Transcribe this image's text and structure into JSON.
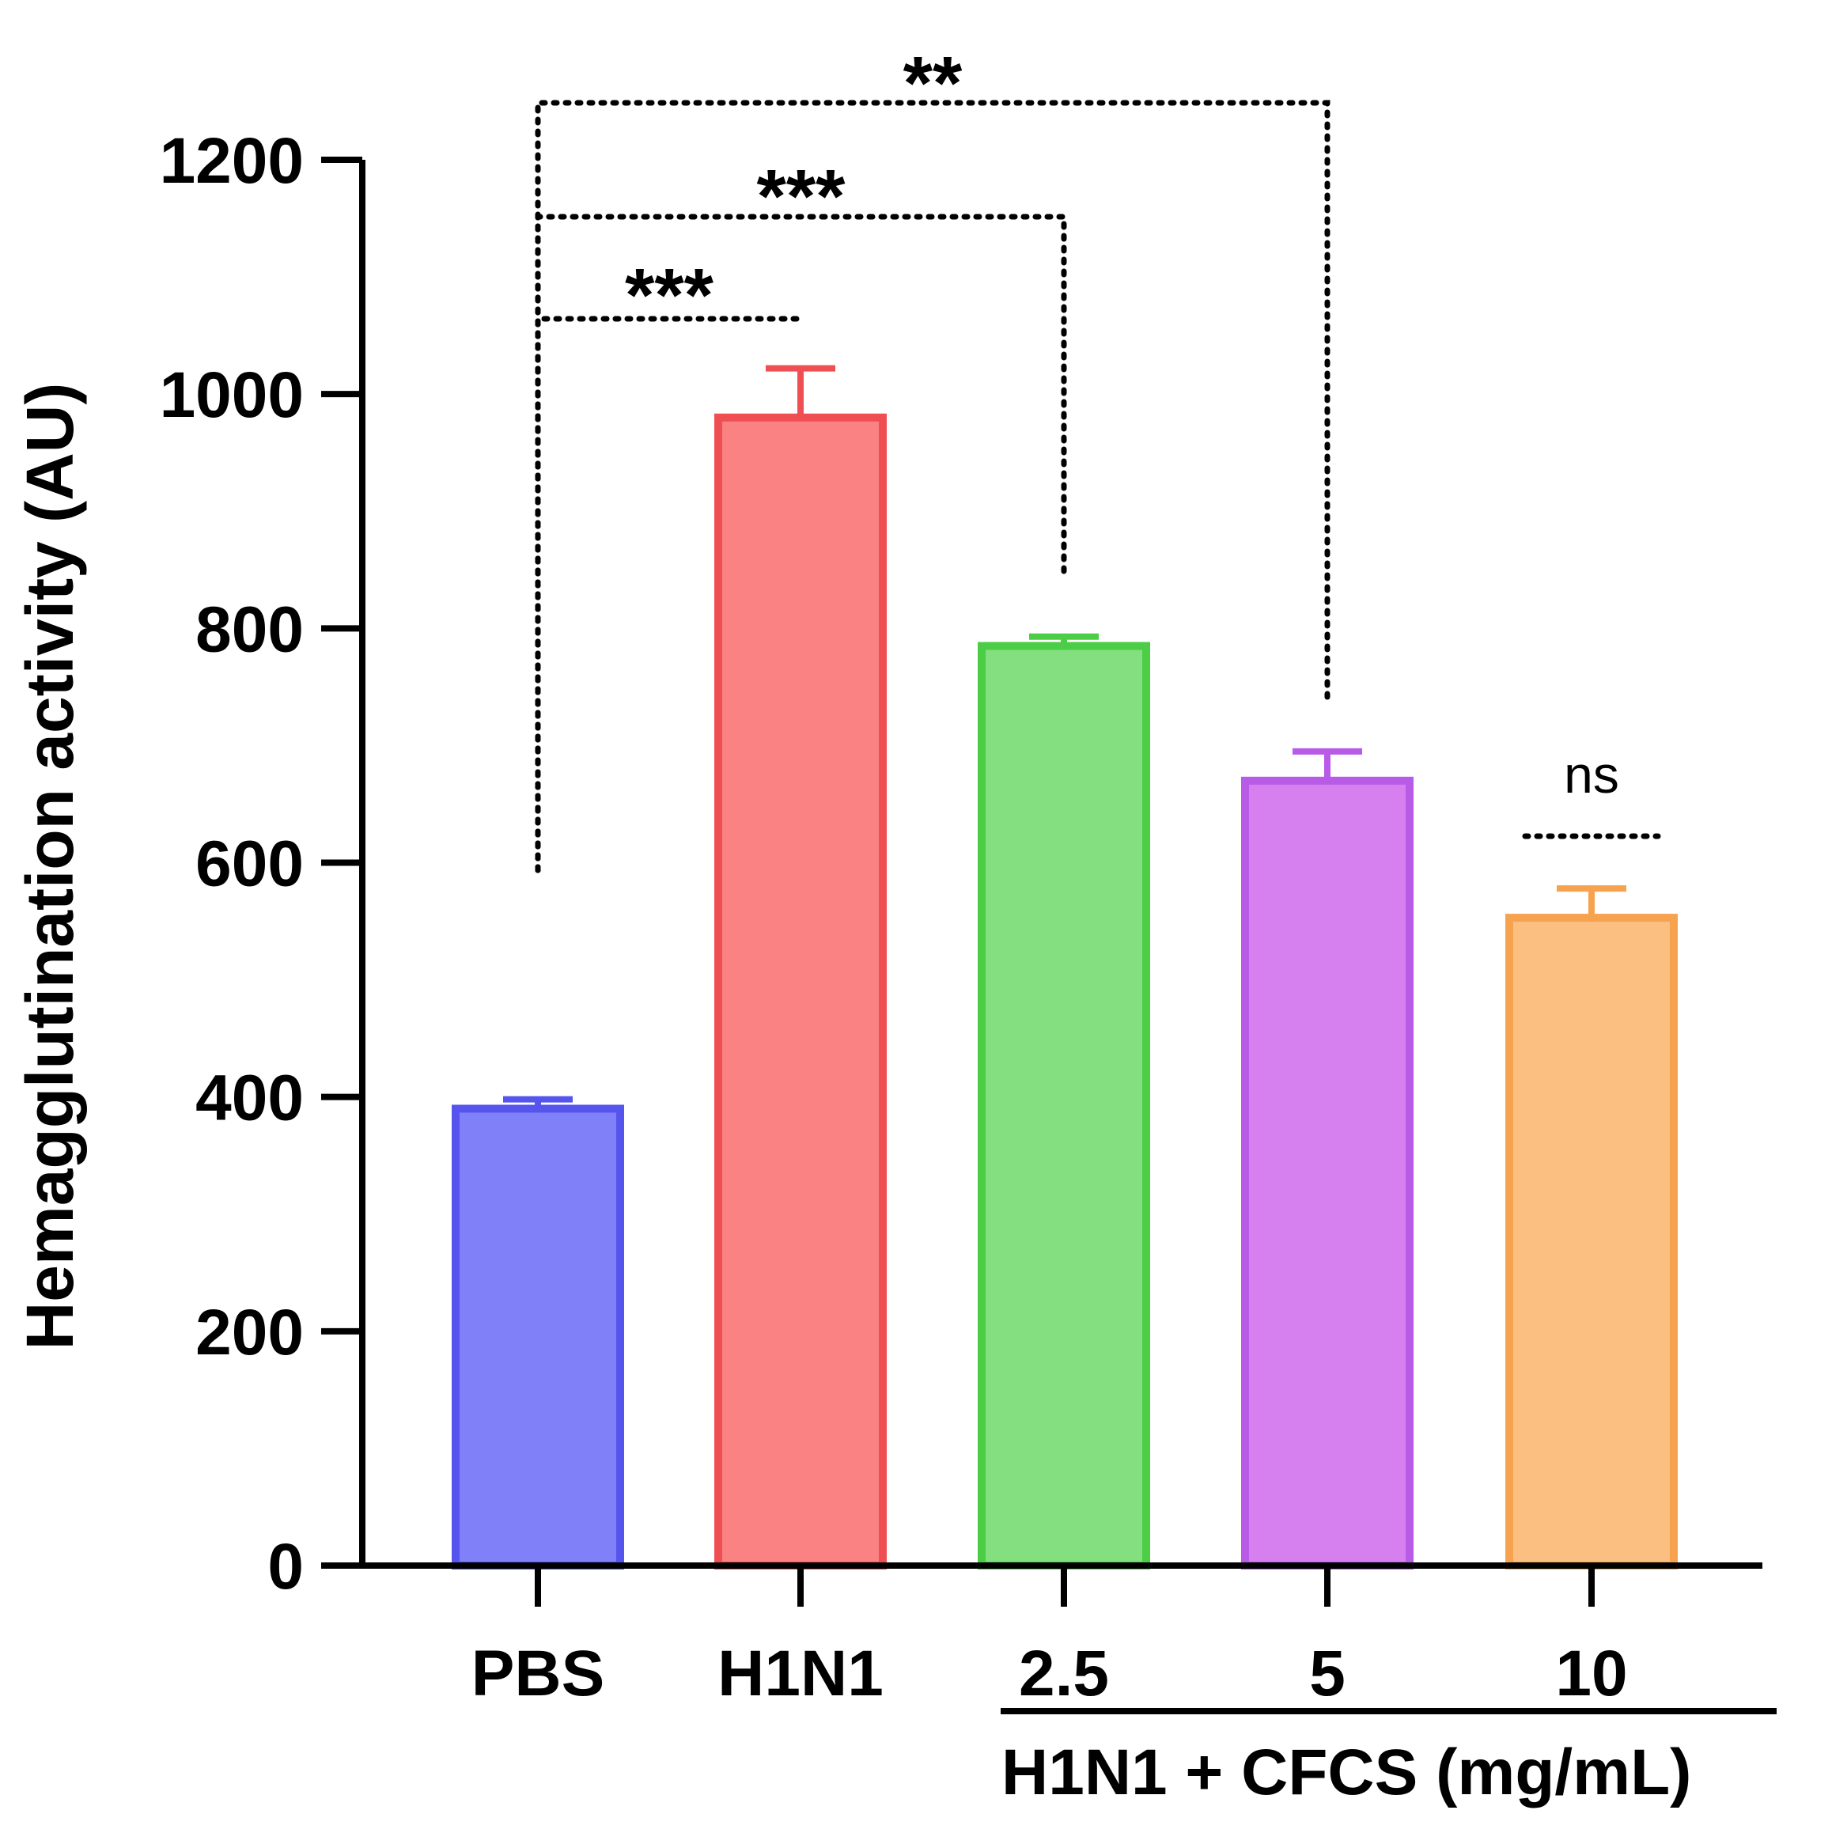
{
  "chart_data": {
    "type": "bar",
    "title": "",
    "xlabel": "",
    "ylabel": "Hemagglutination activity (AU)",
    "ylim": [
      0,
      1200
    ],
    "yticks": [
      "0",
      "200",
      "400",
      "600",
      "800",
      "1000",
      "1200"
    ],
    "categories": [
      "PBS",
      "H1N1",
      "2.5",
      "5",
      "10"
    ],
    "values": [
      390,
      980,
      785,
      670,
      553
    ],
    "errors": [
      8,
      42,
      8,
      25,
      25
    ],
    "colors": {
      "fill": [
        "#8080f8",
        "#fa8282",
        "#84df80",
        "#d580ee",
        "#fbbf82"
      ],
      "edge": [
        "#5555ee",
        "#ef4f53",
        "#4ccd46",
        "#b85be7",
        "#f7a24f"
      ]
    },
    "group_label": "H1N1 + CFCS (mg/mL)",
    "annotations": [
      {
        "label": "***",
        "from": "PBS",
        "to": "H1N1"
      },
      {
        "label": "***",
        "from": "PBS",
        "to": "2.5"
      },
      {
        "label": "**",
        "from": "PBS",
        "to": "5"
      },
      {
        "label": "ns",
        "target": "10"
      }
    ]
  }
}
